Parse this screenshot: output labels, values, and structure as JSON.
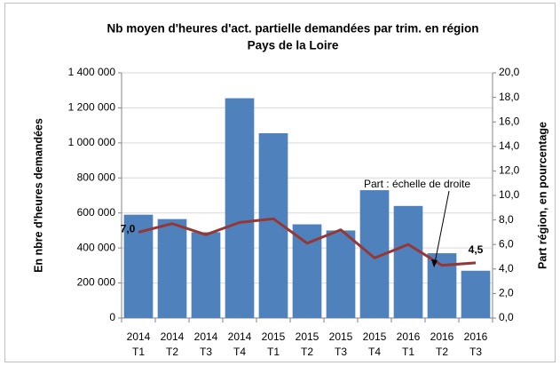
{
  "chart_data": {
    "type": "bar_line",
    "title": [
      "Nb moyen d'heures d'act. partielle demandées par trim. en région",
      "Pays de la Loire"
    ],
    "ylabel": "En nbre d'heures demandées",
    "y2label": "Part région, en pourcentage",
    "annotation": "Part : échelle de droite",
    "categories": [
      [
        "2014",
        "T1"
      ],
      [
        "2014",
        "T2"
      ],
      [
        "2014",
        "T3"
      ],
      [
        "2014",
        "T4"
      ],
      [
        "2015",
        "T1"
      ],
      [
        "2015",
        "T2"
      ],
      [
        "2015",
        "T3"
      ],
      [
        "2015",
        "T4"
      ],
      [
        "2016",
        "T1"
      ],
      [
        "2016",
        "T2"
      ],
      [
        "2016",
        "T3"
      ]
    ],
    "series": [
      {
        "type": "bar",
        "color": "#4f81bd",
        "values": [
          590000,
          565000,
          490000,
          1255000,
          1055000,
          535000,
          500000,
          730000,
          640000,
          370000,
          270000
        ]
      },
      {
        "type": "line",
        "axis": "y2",
        "color": "#953735",
        "values": [
          7.0,
          7.7,
          6.8,
          7.8,
          8.1,
          6.1,
          7.2,
          4.9,
          6.0,
          4.3,
          4.5
        ],
        "value_labels": [
          "7,0",
          null,
          null,
          null,
          null,
          null,
          null,
          null,
          null,
          null,
          "4,5"
        ]
      }
    ],
    "ylim": [
      0,
      1400000
    ],
    "yticks": [
      0,
      {
        "value": 200000,
        "label": "200 000"
      },
      {
        "value": 400000,
        "label": "400 000"
      },
      {
        "value": 600000,
        "label": "600 000"
      },
      {
        "value": 800000,
        "label": "800 000"
      },
      {
        "value": 1000000,
        "label": "1 000 000"
      },
      {
        "value": 1200000,
        "label": "1 200 000"
      },
      {
        "value": 1400000,
        "label": "1 400 000"
      }
    ],
    "y2lim": [
      0,
      20
    ],
    "y2ticks": [
      {
        "value": 0,
        "label": "0,0"
      },
      {
        "value": 2,
        "label": "2,0"
      },
      {
        "value": 4,
        "label": "4,0"
      },
      {
        "value": 6,
        "label": "6,0"
      },
      {
        "value": 8,
        "label": "8,0"
      },
      {
        "value": 10,
        "label": "10,0"
      },
      {
        "value": 12,
        "label": "12,0"
      },
      {
        "value": 14,
        "label": "14,0"
      },
      {
        "value": 16,
        "label": "16,0"
      },
      {
        "value": 18,
        "label": "18,0"
      },
      {
        "value": 20,
        "label": "20,0"
      }
    ],
    "grid": true
  }
}
